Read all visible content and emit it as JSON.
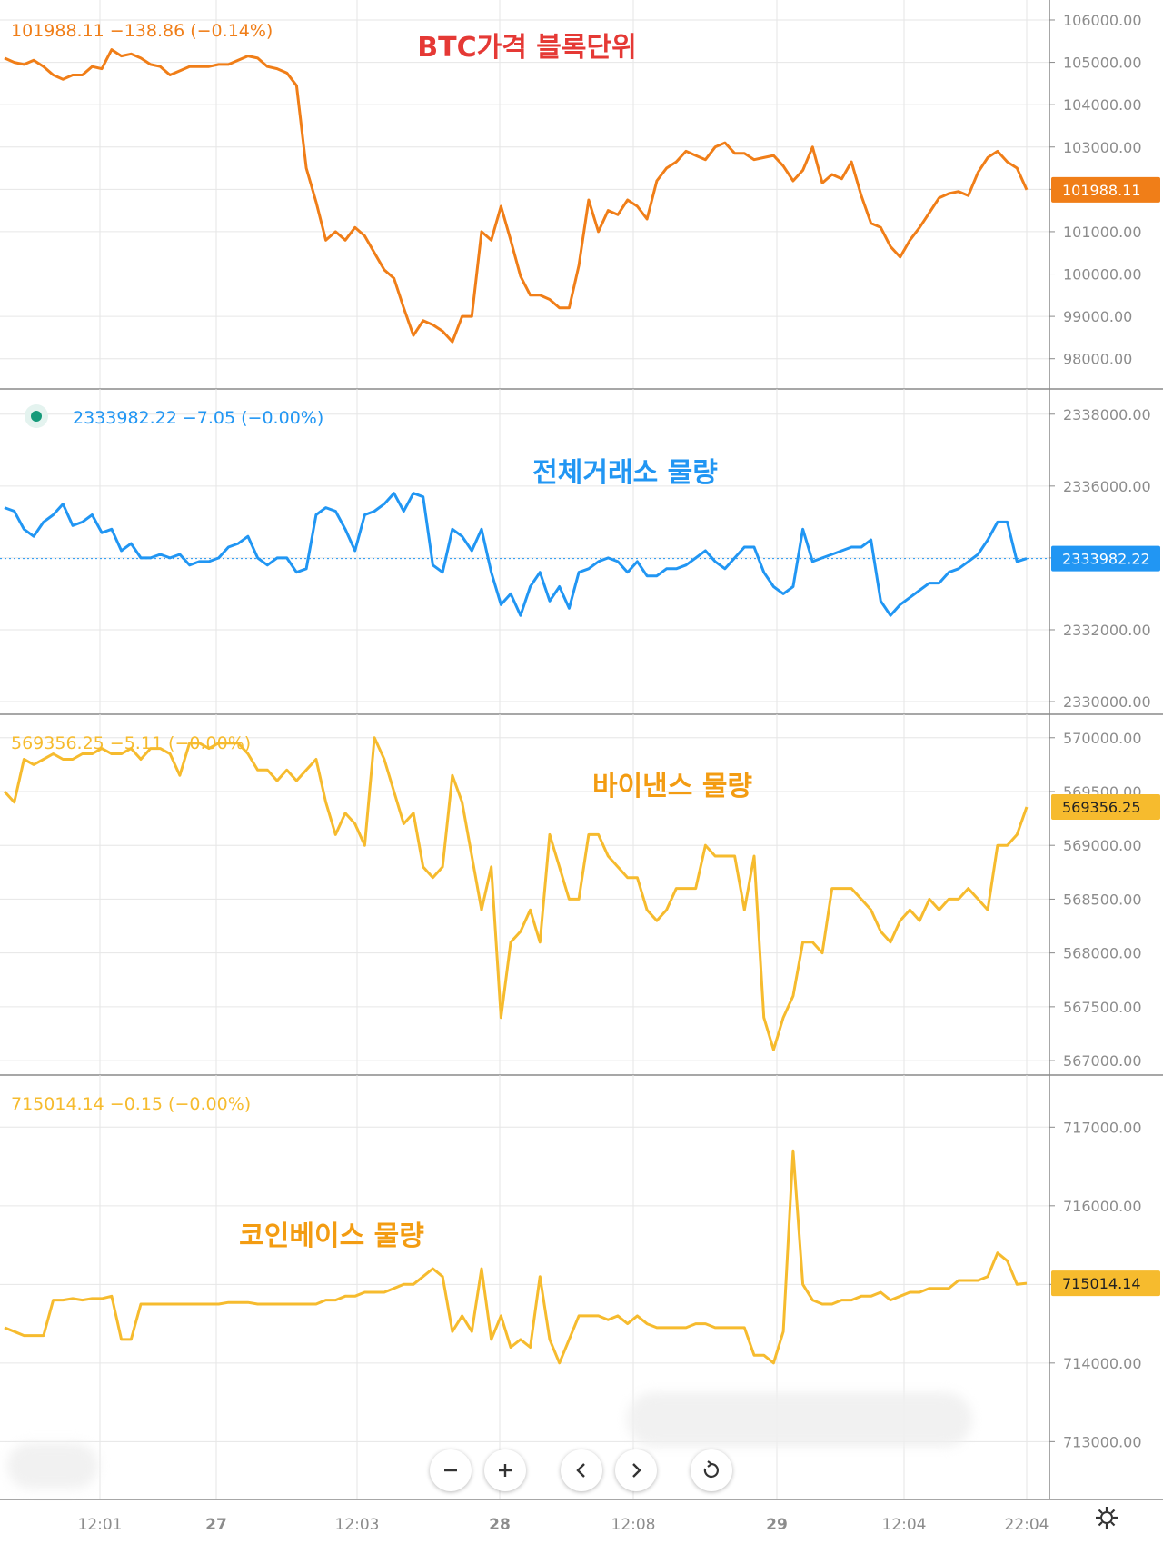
{
  "colors": {
    "btc": "#f07e18",
    "total": "#2196f3",
    "binance": "#f6bb2e",
    "coinbase": "#f6bb2e",
    "annot_btc": "#e53935",
    "annot_total": "#2196f3",
    "annot_binance": "#f39c12",
    "annot_coinbase": "#f39c12",
    "grid": "#e6e6e6",
    "axis_text": "#8c8c8c",
    "separator": "#8a8a8a"
  },
  "xaxis": {
    "ticks": [
      "12:01",
      "27",
      "12:03",
      "28",
      "12:08",
      "29",
      "12:04",
      "22:04"
    ]
  },
  "controls": [
    "zoom-out-icon",
    "zoom-in-icon",
    "scroll-left-icon",
    "scroll-right-icon",
    "reset-icon"
  ],
  "settings_icon": "gear-icon",
  "chart_data": [
    {
      "type": "line",
      "legend": "101988.11  −138.86 (−0.14%)",
      "annotation": "BTC가격 블록단위",
      "last_label": "101988.11",
      "ylim": [
        97500,
        106300
      ],
      "yticks": [
        106000,
        105000,
        104000,
        103000,
        102000,
        101000,
        100000,
        99000,
        98000
      ],
      "ytick_labels": [
        "106000.00",
        "105000.00",
        "104000.00",
        "103000.00",
        "102000.00",
        "101000.00",
        "100000.00",
        "99000.00",
        "98000.00"
      ],
      "x": [
        0,
        10,
        20,
        30,
        40,
        50,
        60,
        70,
        80,
        90,
        100,
        110,
        120,
        130,
        140,
        150,
        160,
        170,
        180,
        190,
        200,
        210,
        220,
        230,
        240,
        250,
        260,
        270,
        280,
        290,
        300,
        310,
        320,
        330,
        340,
        350,
        360,
        370,
        380,
        390,
        400,
        410,
        420,
        430,
        440,
        450,
        460,
        470,
        480,
        490,
        500,
        510,
        520,
        530,
        540,
        550,
        560,
        570,
        580,
        590,
        600,
        610,
        620,
        630,
        640,
        650,
        660,
        670,
        680,
        690,
        700,
        710,
        720,
        730,
        740,
        750,
        760,
        770,
        780,
        790,
        800,
        810,
        820,
        830,
        840,
        850,
        860,
        870,
        880,
        890,
        900,
        910,
        920,
        930,
        940,
        950,
        960,
        970,
        980,
        990,
        1000,
        1010,
        1020,
        1030,
        1040,
        1050
      ],
      "values": [
        105100,
        105000,
        104950,
        105050,
        104900,
        104700,
        104600,
        104700,
        104700,
        104900,
        104850,
        105300,
        105150,
        105200,
        105100,
        104950,
        104900,
        104700,
        104800,
        104900,
        104900,
        104900,
        104950,
        104950,
        105050,
        105150,
        105100,
        104900,
        104850,
        104750,
        104450,
        102500,
        101700,
        100800,
        101000,
        100800,
        101100,
        100900,
        100500,
        100100,
        99900,
        99200,
        98550,
        98900,
        98800,
        98650,
        98400,
        99000,
        99000,
        101000,
        100800,
        101600,
        100800,
        99950,
        99500,
        99500,
        99400,
        99200,
        99200,
        100200,
        101750,
        101000,
        101500,
        101400,
        101750,
        101600,
        101300,
        102200,
        102500,
        102650,
        102900,
        102800,
        102700,
        103000,
        103100,
        102850,
        102850,
        102700,
        102750,
        102800,
        102550,
        102200,
        102450,
        103000,
        102150,
        102350,
        102250,
        102650,
        101850,
        101200,
        101100,
        100650,
        100400,
        100800,
        101100,
        101450,
        101800,
        101900,
        101950,
        101850,
        102400,
        102750,
        102900,
        102650,
        102500,
        101988
      ]
    },
    {
      "type": "line",
      "legend": "2333982.22  −7.05 (−0.00%)",
      "annotation": "전체거래소 물량",
      "last_label": "2333982.22",
      "ylim": [
        2329900,
        2338500
      ],
      "yticks": [
        2338000,
        2336000,
        2334000,
        2332000,
        2330000
      ],
      "ytick_labels": [
        "2338000.00",
        "2336000.00",
        "2334000.00",
        "2332000.00",
        "2330000.00"
      ],
      "x": [
        0,
        10,
        20,
        30,
        40,
        50,
        60,
        70,
        80,
        90,
        100,
        110,
        120,
        130,
        140,
        150,
        160,
        170,
        180,
        190,
        200,
        210,
        220,
        230,
        240,
        250,
        260,
        270,
        280,
        290,
        300,
        310,
        320,
        330,
        340,
        350,
        360,
        370,
        380,
        390,
        400,
        410,
        420,
        430,
        440,
        450,
        460,
        470,
        480,
        490,
        500,
        510,
        520,
        530,
        540,
        550,
        560,
        570,
        580,
        590,
        600,
        610,
        620,
        630,
        640,
        650,
        660,
        670,
        680,
        690,
        700,
        710,
        720,
        730,
        740,
        750,
        760,
        770,
        780,
        790,
        800,
        810,
        820,
        830,
        840,
        850,
        860,
        870,
        880,
        890,
        900,
        910,
        920,
        930,
        940,
        950,
        960,
        970,
        980,
        990,
        1000,
        1010,
        1020,
        1030,
        1040,
        1050
      ],
      "values": [
        2335400,
        2335300,
        2334800,
        2334600,
        2335000,
        2335200,
        2335500,
        2334900,
        2335000,
        2335200,
        2334700,
        2334800,
        2334200,
        2334400,
        2334000,
        2334000,
        2334100,
        2334000,
        2334100,
        2333800,
        2333900,
        2333900,
        2334000,
        2334300,
        2334400,
        2334600,
        2334000,
        2333800,
        2334000,
        2334000,
        2333600,
        2333700,
        2335200,
        2335400,
        2335300,
        2334800,
        2334200,
        2335200,
        2335300,
        2335500,
        2335800,
        2335300,
        2335800,
        2335700,
        2333800,
        2333600,
        2334800,
        2334600,
        2334200,
        2334800,
        2333600,
        2332700,
        2333000,
        2332400,
        2333200,
        2333600,
        2332800,
        2333200,
        2332600,
        2333600,
        2333700,
        2333900,
        2334000,
        2333900,
        2333600,
        2333900,
        2333500,
        2333500,
        2333700,
        2333700,
        2333800,
        2334000,
        2334200,
        2333900,
        2333700,
        2334000,
        2334300,
        2334300,
        2333600,
        2333200,
        2333000,
        2333200,
        2334800,
        2333900,
        2334000,
        2334100,
        2334200,
        2334300,
        2334300,
        2334500,
        2332800,
        2332400,
        2332700,
        2332900,
        2333100,
        2333300,
        2333300,
        2333600,
        2333700,
        2333900,
        2334100,
        2334500,
        2335000,
        2335000,
        2333900,
        2333982
      ]
    },
    {
      "type": "line",
      "legend": "569356.25  −5.11 (−0.00%)",
      "annotation": "바이낸스 물량",
      "last_label": "569356.25",
      "ylim": [
        566950,
        570150
      ],
      "yticks": [
        570000,
        569500,
        569000,
        568500,
        568000,
        567500,
        567000
      ],
      "ytick_labels": [
        "570000.00",
        "569500.00",
        "569000.00",
        "568500.00",
        "568000.00",
        "567500.00",
        "567000.00"
      ],
      "x": [
        0,
        10,
        20,
        30,
        40,
        50,
        60,
        70,
        80,
        90,
        100,
        110,
        120,
        130,
        140,
        150,
        160,
        170,
        180,
        190,
        200,
        210,
        220,
        230,
        240,
        250,
        260,
        270,
        280,
        290,
        300,
        310,
        320,
        330,
        340,
        350,
        360,
        370,
        380,
        390,
        400,
        410,
        420,
        430,
        440,
        450,
        460,
        470,
        480,
        490,
        500,
        510,
        520,
        530,
        540,
        550,
        560,
        570,
        580,
        590,
        600,
        610,
        620,
        630,
        640,
        650,
        660,
        670,
        680,
        690,
        700,
        710,
        720,
        730,
        740,
        750,
        760,
        770,
        780,
        790,
        800,
        810,
        820,
        830,
        840,
        850,
        860,
        870,
        880,
        890,
        900,
        910,
        920,
        930,
        940,
        950,
        960,
        970,
        980,
        990,
        1000,
        1010,
        1020,
        1030,
        1040,
        1050
      ],
      "values": [
        569500,
        569400,
        569800,
        569750,
        569800,
        569850,
        569800,
        569800,
        569850,
        569850,
        569900,
        569850,
        569850,
        569900,
        569800,
        569900,
        569900,
        569850,
        569650,
        569950,
        569950,
        569900,
        569950,
        569950,
        569950,
        569850,
        569700,
        569700,
        569600,
        569700,
        569600,
        569700,
        569800,
        569400,
        569100,
        569300,
        569200,
        569000,
        570000,
        569800,
        569500,
        569200,
        569300,
        568800,
        568700,
        568800,
        569650,
        569400,
        568900,
        568400,
        568800,
        567400,
        568100,
        568200,
        568400,
        568100,
        569100,
        568800,
        568500,
        568500,
        569100,
        569100,
        568900,
        568800,
        568700,
        568700,
        568400,
        568300,
        568400,
        568600,
        568600,
        568600,
        569000,
        568900,
        568900,
        568900,
        568400,
        568900,
        567400,
        567100,
        567400,
        567600,
        568100,
        568100,
        568000,
        568600,
        568600,
        568600,
        568500,
        568400,
        568200,
        568100,
        568300,
        568400,
        568300,
        568500,
        568400,
        568500,
        568500,
        568600,
        568500,
        568400,
        569000,
        569000,
        569100,
        569356
      ]
    },
    {
      "type": "line",
      "legend": "715014.14  −0.15 (−0.00%)",
      "annotation": "코인베이스 물량",
      "last_label": "715014.14",
      "ylim": [
        712900,
        717200
      ],
      "yticks": [
        717000,
        716000,
        715000,
        714000,
        713000
      ],
      "ytick_labels": [
        "717000.00",
        "716000.00",
        "715000.00",
        "714000.00",
        "713000.00"
      ],
      "x": [
        0,
        10,
        20,
        30,
        40,
        50,
        60,
        70,
        80,
        90,
        100,
        110,
        120,
        130,
        140,
        150,
        160,
        170,
        180,
        190,
        200,
        210,
        220,
        230,
        240,
        250,
        260,
        270,
        280,
        290,
        300,
        310,
        320,
        330,
        340,
        350,
        360,
        370,
        380,
        390,
        400,
        410,
        420,
        430,
        440,
        450,
        460,
        470,
        480,
        490,
        500,
        510,
        520,
        530,
        540,
        550,
        560,
        570,
        580,
        590,
        600,
        610,
        620,
        630,
        640,
        650,
        660,
        670,
        680,
        690,
        700,
        710,
        720,
        730,
        740,
        750,
        760,
        770,
        780,
        790,
        800,
        810,
        820,
        830,
        840,
        850,
        860,
        870,
        880,
        890,
        900,
        910,
        920,
        930,
        940,
        950,
        960,
        970,
        980,
        990,
        1000,
        1010,
        1020,
        1030,
        1040,
        1050
      ],
      "values": [
        714450,
        714400,
        714350,
        714350,
        714350,
        714800,
        714800,
        714820,
        714800,
        714820,
        714820,
        714850,
        714300,
        714300,
        714750,
        714750,
        714750,
        714750,
        714750,
        714750,
        714750,
        714750,
        714750,
        714770,
        714770,
        714770,
        714750,
        714750,
        714750,
        714750,
        714750,
        714750,
        714750,
        714800,
        714800,
        714850,
        714850,
        714900,
        714900,
        714900,
        714950,
        715000,
        715000,
        715100,
        715200,
        715100,
        714400,
        714600,
        714400,
        715200,
        714300,
        714600,
        714200,
        714300,
        714200,
        715100,
        714300,
        714000,
        714300,
        714600,
        714600,
        714600,
        714550,
        714600,
        714500,
        714600,
        714500,
        714450,
        714450,
        714450,
        714450,
        714500,
        714500,
        714450,
        714450,
        714450,
        714450,
        714100,
        714100,
        714000,
        714400,
        716700,
        715000,
        714800,
        714750,
        714750,
        714800,
        714800,
        714850,
        714850,
        714900,
        714800,
        714850,
        714900,
        714900,
        714950,
        714950,
        714950,
        715050,
        715050,
        715050,
        715100,
        715400,
        715300,
        715000,
        715014
      ]
    }
  ]
}
